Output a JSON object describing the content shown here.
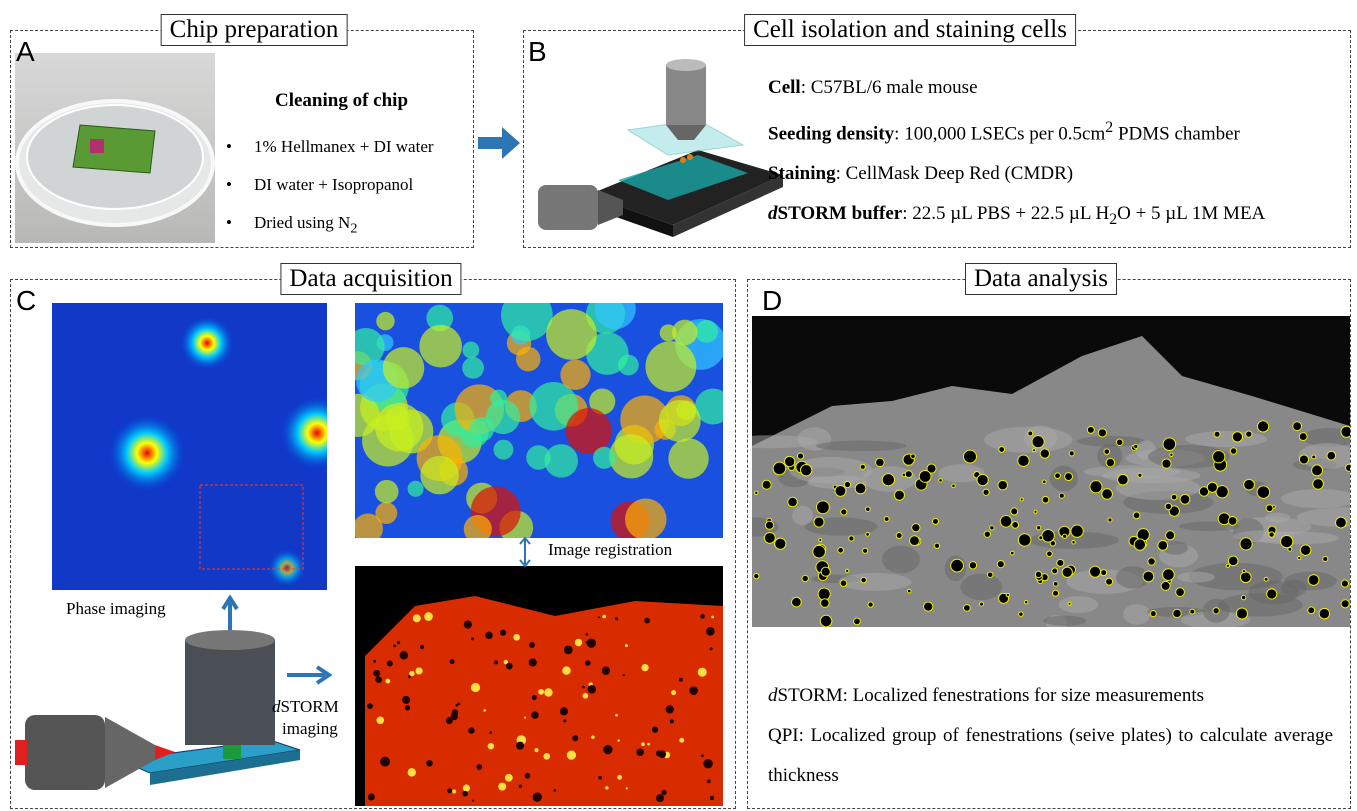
{
  "panel_a": {
    "label": "A",
    "title": "Chip preparation",
    "heading": "Cleaning of chip",
    "items": [
      [
        {
          "t": "1% Hellmanex + DI water"
        }
      ],
      [
        {
          "t": "DI water + Isopropanol"
        }
      ],
      [
        {
          "t": "Dried using N"
        },
        {
          "sub": "2"
        }
      ]
    ]
  },
  "panel_b": {
    "label": "B",
    "title": "Cell isolation and staining cells",
    "lines": [
      [
        {
          "b": "Cell"
        },
        {
          "t": ": C57BL/6 male mouse"
        }
      ],
      [
        {
          "b": "Seeding density"
        },
        {
          "t": ": 100,000 LSECs per 0.5cm"
        },
        {
          "sup": "2"
        },
        {
          "t": " PDMS chamber"
        }
      ],
      [
        {
          "b": "Staining"
        },
        {
          "t": ": CellMask Deep Red (CMDR)"
        }
      ],
      [
        {
          "bi": "d"
        },
        {
          "b": "STORM buffer"
        },
        {
          "t": ": 22.5 µL PBS + 22.5 µL H"
        },
        {
          "sub": "2"
        },
        {
          "t": "O + 5 µL 1M MEA"
        }
      ]
    ]
  },
  "panel_c": {
    "label": "C",
    "title": "Data acquisition",
    "phase": "Phase imaging",
    "registration": "Image registration",
    "storm": [
      {
        "i": "d"
      },
      {
        "t": "STORM"
      }
    ],
    "storm_2": "imaging"
  },
  "panel_d": {
    "label": "D",
    "title": "Data analysis",
    "lines": [
      [
        {
          "i": "d"
        },
        {
          "t": "STORM: Localized fenestrations for size measurements"
        }
      ],
      [
        {
          "t": "QPI: Localized group of fenestrations (seive plates) to calculate average thickness"
        }
      ]
    ]
  }
}
